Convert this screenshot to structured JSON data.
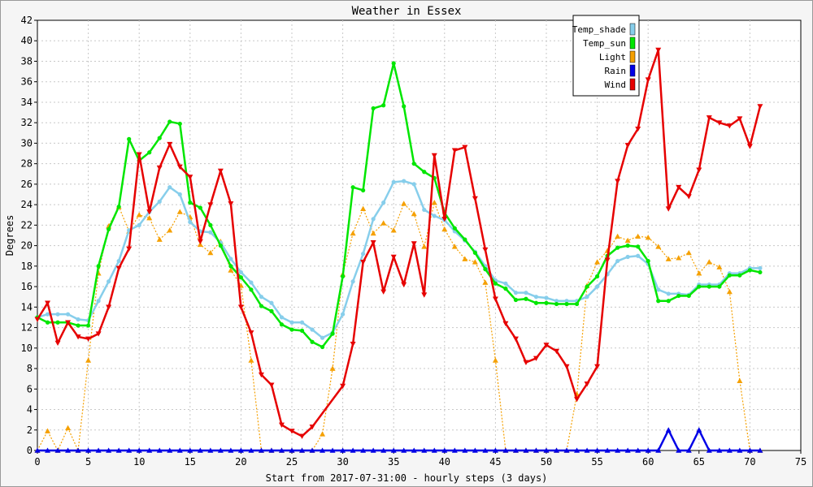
{
  "chart_data": {
    "type": "line",
    "title": "Weather in Essex",
    "xlabel": "Start from 2017-07-31:00 - hourly steps (3 days)",
    "ylabel": "Degrees",
    "xlim": [
      0,
      75
    ],
    "ylim": [
      0,
      42
    ],
    "xticks": [
      0,
      5,
      10,
      15,
      20,
      25,
      30,
      35,
      40,
      45,
      50,
      55,
      60,
      65,
      70,
      75
    ],
    "yticks": [
      0,
      2,
      4,
      6,
      8,
      10,
      12,
      14,
      16,
      18,
      20,
      22,
      24,
      26,
      28,
      30,
      32,
      34,
      36,
      38,
      40,
      42
    ],
    "grid": true,
    "legend_position": "top-right",
    "series": [
      {
        "name": "Temp_shade",
        "color": "#87ceeb",
        "marker": "dot",
        "values": [
          13.0,
          13.3,
          13.3,
          13.3,
          12.8,
          12.7,
          14.6,
          16.5,
          18.5,
          21.5,
          22.0,
          23.3,
          24.3,
          25.7,
          25.0,
          22.3,
          21.4,
          21.3,
          20.3,
          18.7,
          17.4,
          16.4,
          15.0,
          14.4,
          13.0,
          12.5,
          12.5,
          11.8,
          11.0,
          11.5,
          13.3,
          16.5,
          19.2,
          22.6,
          24.2,
          26.2,
          26.3,
          26.0,
          23.5,
          22.9,
          22.5,
          21.4,
          20.5,
          19.4,
          18.0,
          16.6,
          16.3,
          15.4,
          15.4,
          15.0,
          14.9,
          14.6,
          14.6,
          14.6,
          15.0,
          16.0,
          17.2,
          18.5,
          18.9,
          19.0,
          18.2,
          15.7,
          15.3,
          15.3,
          15.2,
          16.2,
          16.2,
          16.2,
          17.3,
          17.3,
          17.8,
          17.8
        ]
      },
      {
        "name": "Temp_sun",
        "color": "#00e600",
        "marker": "dot",
        "values": [
          13.0,
          12.5,
          12.5,
          12.5,
          12.2,
          12.2,
          18.0,
          21.6,
          23.8,
          30.4,
          28.3,
          29.1,
          30.5,
          32.1,
          31.9,
          24.2,
          23.7,
          22.0,
          20.0,
          18.0,
          16.9,
          15.7,
          14.1,
          13.6,
          12.3,
          11.8,
          11.7,
          10.6,
          10.1,
          11.4,
          17.0,
          25.7,
          25.4,
          33.4,
          33.7,
          37.8,
          33.6,
          28.0,
          27.2,
          26.6,
          23.2,
          21.7,
          20.6,
          19.3,
          17.7,
          16.3,
          15.8,
          14.7,
          14.8,
          14.4,
          14.4,
          14.3,
          14.3,
          14.3,
          16.0,
          17.0,
          19.0,
          19.8,
          20.0,
          19.9,
          18.5,
          14.6,
          14.6,
          15.1,
          15.1,
          16.0,
          16.0,
          16.0,
          17.1,
          17.1,
          17.6,
          17.4
        ]
      },
      {
        "name": "Light",
        "color": "#f5a000",
        "marker": "triangle-up",
        "values": [
          0.0,
          1.9,
          0.0,
          2.2,
          0.0,
          8.8,
          17.3,
          21.9,
          23.8,
          21.4,
          23.0,
          22.7,
          20.6,
          21.5,
          23.3,
          22.8,
          20.1,
          19.3,
          20.4,
          17.6,
          16.1,
          8.8,
          0.0,
          0.0,
          0.0,
          0.0,
          0.0,
          0.0,
          1.6,
          8.0,
          17.2,
          21.2,
          23.6,
          21.2,
          22.2,
          21.5,
          24.1,
          23.1,
          19.9,
          24.2,
          21.6,
          19.9,
          18.7,
          18.4,
          16.4,
          8.8,
          0.0,
          0.0,
          0.0,
          0.0,
          0.0,
          0.0,
          0.0,
          5.5,
          16.1,
          18.4,
          19.5,
          20.9,
          20.5,
          20.9,
          20.8,
          19.9,
          18.7,
          18.8,
          19.3,
          17.3,
          18.4,
          17.9,
          15.5,
          6.8,
          0.0,
          0.0
        ]
      },
      {
        "name": "Rain",
        "color": "#0000e6",
        "marker": "triangle-up",
        "values": [
          0,
          0,
          0,
          0,
          0,
          0,
          0,
          0,
          0,
          0,
          0,
          0,
          0,
          0,
          0,
          0,
          0,
          0,
          0,
          0,
          0,
          0,
          0,
          0,
          0,
          0,
          0,
          0,
          0,
          0,
          0,
          0,
          0,
          0,
          0,
          0,
          0,
          0,
          0,
          0,
          0,
          0,
          0,
          0,
          0,
          0,
          0,
          0,
          0,
          0,
          0,
          0,
          0,
          0,
          0,
          0,
          0,
          0,
          0,
          0,
          0,
          0,
          2.0,
          0,
          0,
          2.0,
          0,
          0,
          0,
          0,
          0,
          0
        ]
      },
      {
        "name": "Wind",
        "color": "#e60000",
        "marker": "triangle-down",
        "values": [
          12.8,
          14.4,
          10.5,
          12.5,
          11.1,
          10.9,
          11.4,
          14.0,
          17.8,
          19.7,
          28.9,
          23.3,
          27.6,
          29.9,
          27.7,
          26.7,
          20.4,
          24.0,
          27.3,
          24.1,
          14.0,
          11.5,
          7.4,
          6.4,
          2.5,
          1.9,
          1.4,
          2.3,
          null,
          null,
          6.3,
          10.4,
          18.4,
          20.3,
          15.5,
          18.9,
          16.2,
          20.2,
          15.2,
          28.8,
          22.6,
          29.3,
          29.6,
          24.6,
          19.6,
          14.8,
          12.4,
          10.9,
          8.6,
          9.0,
          10.3,
          9.7,
          8.2,
          5.0,
          6.5,
          8.2,
          18.6,
          26.3,
          29.8,
          31.4,
          36.2,
          39.1,
          23.6,
          25.7,
          24.8,
          27.4,
          32.5,
          32.0,
          31.7,
          32.4,
          29.7,
          33.6
        ]
      }
    ]
  }
}
